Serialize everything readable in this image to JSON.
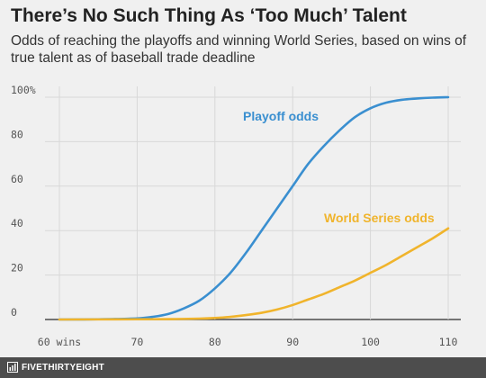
{
  "header": {
    "title": "There’s No Such Thing As ‘Too Much’ Talent",
    "subtitle": "Odds of reaching the playoffs and winning World Series, based on wins of true talent as of baseball trade deadline"
  },
  "chart_data": {
    "type": "line",
    "title": "There’s No Such Thing As ‘Too Much’ Talent",
    "subtitle": "Odds of reaching the playoffs and winning World Series, based on wins of true talent as of baseball trade deadline",
    "xlabel": "",
    "ylabel": "",
    "xlim": [
      60,
      110
    ],
    "ylim": [
      0,
      100
    ],
    "grid": true,
    "x_ticks": [
      {
        "value": 60,
        "label": "60 wins"
      },
      {
        "value": 70,
        "label": "70"
      },
      {
        "value": 80,
        "label": "80"
      },
      {
        "value": 90,
        "label": "90"
      },
      {
        "value": 100,
        "label": "100"
      },
      {
        "value": 110,
        "label": "110"
      }
    ],
    "y_ticks": [
      {
        "value": 0,
        "label": "0"
      },
      {
        "value": 20,
        "label": "20"
      },
      {
        "value": 40,
        "label": "40"
      },
      {
        "value": 60,
        "label": "60"
      },
      {
        "value": 80,
        "label": "80"
      },
      {
        "value": 100,
        "label": "100%"
      }
    ],
    "series": [
      {
        "name": "Playoff odds",
        "color": "#3a8fd0",
        "x": [
          60,
          65,
          70,
          72,
          74,
          76,
          78,
          80,
          82,
          84,
          86,
          88,
          90,
          92,
          94,
          96,
          98,
          100,
          102,
          104,
          106,
          108,
          110
        ],
        "y": [
          0,
          0.1,
          0.5,
          1.2,
          2.5,
          5,
          8.5,
          14,
          21,
          30,
          40,
          50,
          60,
          70,
          78,
          85,
          91,
          95,
          97.5,
          98.8,
          99.4,
          99.8,
          100
        ]
      },
      {
        "name": "World Series odds",
        "color": "#f0b42c",
        "x": [
          60,
          70,
          75,
          78,
          80,
          82,
          84,
          86,
          88,
          90,
          92,
          94,
          96,
          98,
          100,
          102,
          104,
          106,
          108,
          110
        ],
        "y": [
          0,
          0.1,
          0.2,
          0.4,
          0.7,
          1.2,
          2,
          3,
          4.5,
          6.5,
          9,
          11.5,
          14.5,
          17.5,
          21,
          24.5,
          28.5,
          32.5,
          36.5,
          41
        ]
      }
    ],
    "colors": {
      "background": "#f0f0f0",
      "grid": "#d8d8d8",
      "baseline": "#4a4a4a"
    }
  },
  "footer": {
    "brand": "FIVETHIRTYEIGHT",
    "icon": "fivethirtyeight-logo-icon",
    "background": "#4d4d4d"
  }
}
